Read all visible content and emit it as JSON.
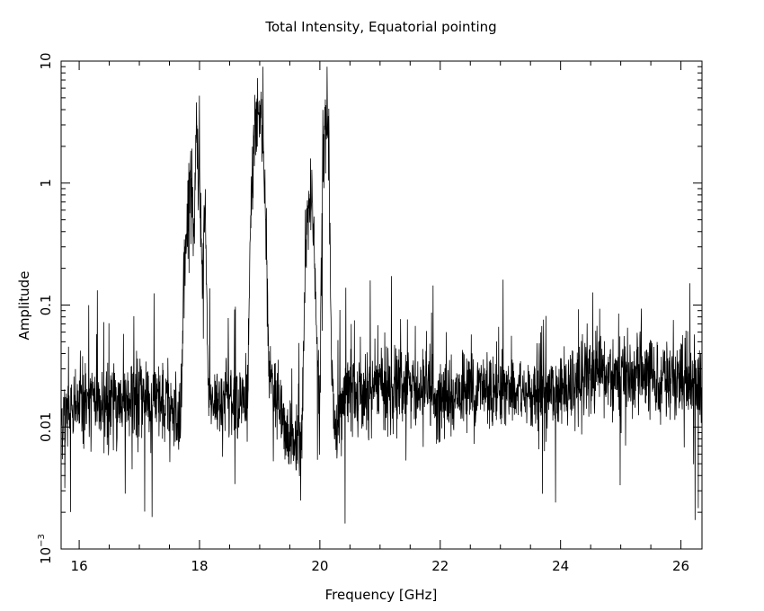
{
  "chart_data": {
    "type": "line",
    "title": "Total Intensity, Equatorial pointing",
    "xlabel": "Frequency [GHz]",
    "ylabel": "Amplitude",
    "xlim": [
      15.7,
      26.35
    ],
    "ylim": [
      0.001,
      10
    ],
    "yscale": "log",
    "x_ticks": [
      16,
      18,
      20,
      22,
      24,
      26
    ],
    "x_tick_labels": [
      "16",
      "18",
      "20",
      "22",
      "24",
      "26"
    ],
    "x_minor_step": 0.5,
    "y_ticks": [
      0.001,
      0.01,
      0.1,
      1,
      10
    ],
    "y_tick_labels": [
      {
        "base": "10",
        "exp": "−3"
      },
      {
        "text": "0.01"
      },
      {
        "text": "0.1"
      },
      {
        "text": "1"
      },
      {
        "text": "10"
      }
    ],
    "grid": false,
    "legend": "none",
    "color": "#000000",
    "series": [
      {
        "values_are": "approximate local median amplitude of the noisy spectrum",
        "x": [
          15.7,
          16.0,
          16.5,
          17.0,
          17.5,
          17.7,
          17.72,
          17.75,
          17.8,
          17.85,
          17.9,
          17.95,
          18.0,
          18.05,
          18.1,
          18.15,
          18.2,
          18.3,
          18.5,
          18.8,
          18.85,
          18.9,
          18.95,
          19.0,
          19.05,
          19.1,
          19.15,
          19.2,
          19.3,
          19.5,
          19.7,
          19.75,
          19.8,
          19.85,
          19.9,
          19.95,
          20.0,
          20.05,
          20.1,
          20.15,
          20.2,
          20.25,
          20.5,
          21.0,
          21.5,
          22.0,
          22.5,
          23.0,
          23.5,
          24.0,
          24.5,
          25.0,
          25.5,
          26.0,
          26.35
        ],
        "values": [
          0.012,
          0.015,
          0.016,
          0.017,
          0.014,
          0.013,
          0.1,
          0.2,
          0.5,
          1.5,
          0.3,
          3.0,
          0.8,
          0.15,
          0.6,
          0.02,
          0.015,
          0.017,
          0.018,
          0.016,
          0.5,
          2.0,
          3.5,
          4.0,
          2.5,
          0.5,
          0.04,
          0.02,
          0.015,
          0.008,
          0.006,
          0.2,
          0.5,
          0.8,
          0.3,
          0.05,
          0.015,
          1.5,
          3.0,
          2.0,
          0.02,
          0.01,
          0.02,
          0.022,
          0.02,
          0.017,
          0.02,
          0.022,
          0.018,
          0.02,
          0.025,
          0.027,
          0.025,
          0.025,
          0.02
        ]
      }
    ]
  }
}
